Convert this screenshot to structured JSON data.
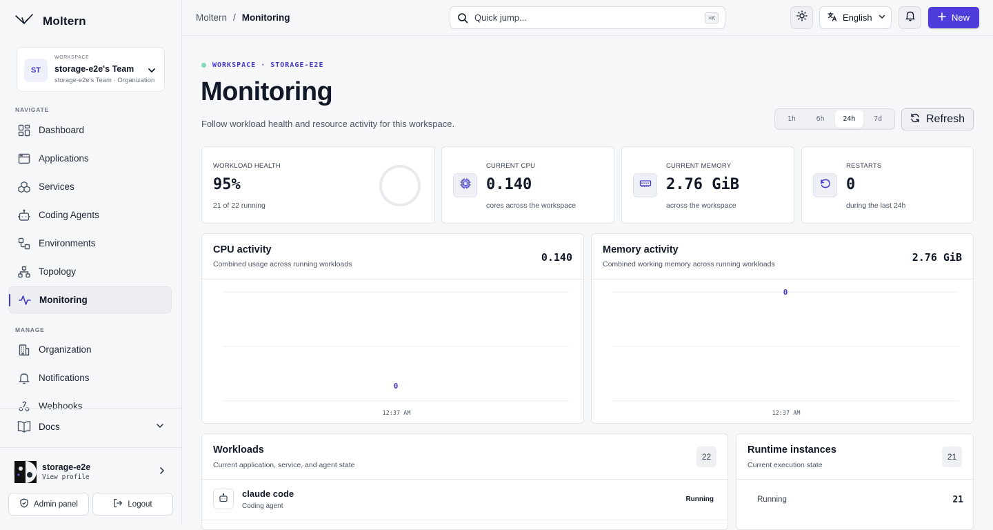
{
  "app": {
    "name": "Moltern"
  },
  "workspace": {
    "kicker": "WORKSPACE",
    "name": "storage-e2e's Team",
    "sub": "storage-e2e's Team · Organization",
    "initials": "ST"
  },
  "nav": {
    "navigate_label": "NAVIGATE",
    "items": [
      {
        "label": "Dashboard",
        "icon": "dashboard-icon"
      },
      {
        "label": "Applications",
        "icon": "applications-icon"
      },
      {
        "label": "Services",
        "icon": "services-icon"
      },
      {
        "label": "Coding Agents",
        "icon": "robot-icon"
      },
      {
        "label": "Environments",
        "icon": "environments-icon"
      },
      {
        "label": "Topology",
        "icon": "topology-icon"
      },
      {
        "label": "Monitoring",
        "icon": "activity-icon",
        "active": true
      }
    ],
    "manage_label": "MANAGE",
    "manage_items": [
      {
        "label": "Organization",
        "icon": "building-icon"
      },
      {
        "label": "Notifications",
        "icon": "bell-icon"
      },
      {
        "label": "Webhooks",
        "icon": "webhook-icon"
      }
    ],
    "docs": "Docs"
  },
  "profile": {
    "name": "storage-e2e",
    "sub": "View profile"
  },
  "sidebar_buttons": {
    "admin": "Admin panel",
    "logout": "Logout"
  },
  "topbar": {
    "breadcrumb": [
      "Moltern",
      "Monitoring"
    ],
    "search_placeholder": "Quick jump...",
    "search_shortcut": "⌘K",
    "language": "English",
    "new_label": "New"
  },
  "page": {
    "kicker": "WORKSPACE · STORAGE-E2E",
    "title": "Monitoring",
    "description": "Follow workload health and resource activity for this workspace.",
    "ranges": [
      "1h",
      "6h",
      "24h",
      "7d"
    ],
    "selected_range": "24h",
    "refresh_label": "Refresh"
  },
  "stats": {
    "health": {
      "label": "WORKLOAD HEALTH",
      "value": "95%",
      "sub": "21 of 22 running",
      "fraction": 0.95
    },
    "cpu": {
      "label": "CURRENT CPU",
      "value": "0.140",
      "sub": "cores across the workspace"
    },
    "memory": {
      "label": "CURRENT MEMORY",
      "value": "2.76 GiB",
      "sub": "across the workspace"
    },
    "restarts": {
      "label": "RESTARTS",
      "value": "0",
      "sub": "during the last 24h"
    }
  },
  "charts": {
    "cpu": {
      "title": "CPU activity",
      "sub": "Combined usage across running workloads",
      "value": "0.140",
      "point_label": "0",
      "time": "12:37 AM"
    },
    "memory": {
      "title": "Memory activity",
      "sub": "Combined working memory across running workloads",
      "value": "2.76 GiB",
      "point_label": "0",
      "time": "12:37 AM"
    }
  },
  "workloads": {
    "title": "Workloads",
    "sub": "Current application, service, and agent state",
    "count": "22",
    "rows": [
      {
        "name": "claude code",
        "type": "Coding agent",
        "status": "Running"
      }
    ]
  },
  "runtime": {
    "title": "Runtime instances",
    "sub": "Current execution state",
    "count": "21",
    "rows": [
      {
        "label": "Running",
        "value": "21"
      }
    ]
  },
  "colors": {
    "accent": "#4f3ddb",
    "accent_text": "#4338ca",
    "status_ok": "#10b981"
  }
}
